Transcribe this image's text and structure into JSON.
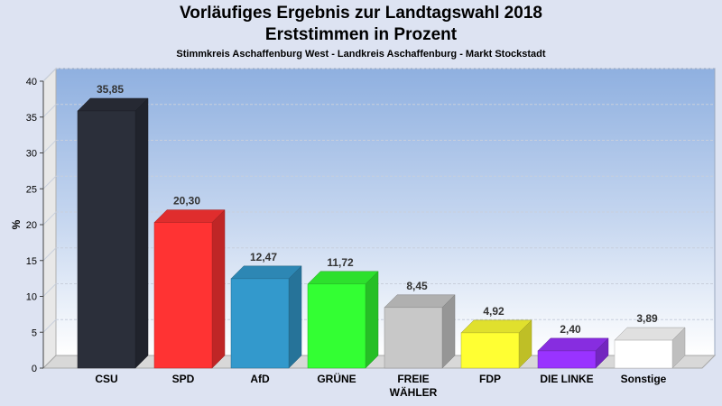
{
  "title": "Vorläufiges Ergebnis zur Landtagswahl 2018",
  "title2": "Erststimmen in Prozent",
  "subtitle": "Stimmkreis Aschaffenburg West - Landkreis Aschaffenburg - Markt Stockstadt",
  "chart_data": {
    "type": "bar",
    "title": "Vorläufiges Ergebnis zur Landtagswahl 2018",
    "ylabel": "%",
    "ylim": [
      0,
      40
    ],
    "yticks": [
      0,
      5,
      10,
      15,
      20,
      25,
      30,
      35,
      40
    ],
    "grid": true,
    "categories": [
      "CSU",
      "SPD",
      "AfD",
      "GRÜNE",
      "FREIE WÄHLER",
      "FDP",
      "DIE LINKE",
      "Sonstige"
    ],
    "category_lines": [
      [
        "CSU"
      ],
      [
        "SPD"
      ],
      [
        "AfD"
      ],
      [
        "GRÜNE"
      ],
      [
        "FREIE",
        "WÄHLER"
      ],
      [
        "FDP"
      ],
      [
        "DIE LINKE"
      ],
      [
        "Sonstige"
      ]
    ],
    "values": [
      35.85,
      20.3,
      12.47,
      11.72,
      8.45,
      4.92,
      2.4,
      3.89
    ],
    "value_labels": [
      "35,85",
      "20,30",
      "12,47",
      "11,72",
      "8,45",
      "4,92",
      "2,40",
      "3,89"
    ],
    "colors": [
      "#2b2f3a",
      "#ff3333",
      "#3399cc",
      "#33ff33",
      "#c8c8c8",
      "#ffff33",
      "#9933ff",
      "#ffffff"
    ]
  }
}
